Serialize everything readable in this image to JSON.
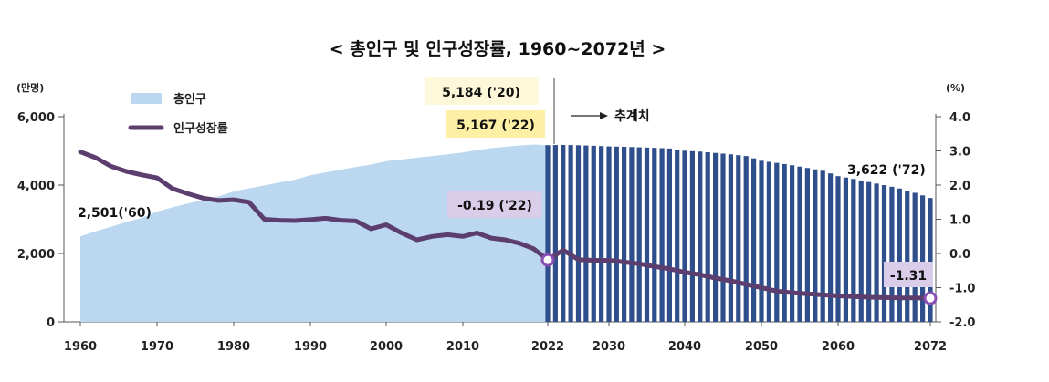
{
  "chart_data": {
    "type": "bar+line",
    "title": "< 총인구 및 인구성장률, 1960~2072년 >",
    "left_axis": {
      "unit": "(만명)",
      "ylim": [
        0,
        6000
      ],
      "ticks": [
        "0",
        "2,000",
        "4,000",
        "6,000"
      ]
    },
    "right_axis": {
      "unit": "(%)",
      "ylim": [
        -2.0,
        4.0
      ],
      "ticks": [
        "4.0",
        "3.0",
        "2.0",
        "1.0",
        "0.0",
        "-1.0",
        "-2.0"
      ]
    },
    "x_ticks": [
      "1960",
      "1970",
      "1980",
      "1990",
      "2000",
      "2010",
      "2022",
      "2030",
      "2040",
      "2050",
      "2060",
      "2072"
    ],
    "legend": {
      "population": "총인구",
      "growth": "인구성장률",
      "position": "top-left"
    },
    "projection_label": "추계치",
    "colors": {
      "observed_area": "#bcd8f0",
      "projection_bars": "#2e4f8c",
      "growth_line": "#5b3e6e",
      "callout_yellow": "#fdf0a4",
      "callout_lightyellow": "#fef8da",
      "callout_purple": "#d9cdea"
    },
    "population": {
      "years": [
        1960,
        1962,
        1964,
        1966,
        1968,
        1970,
        1972,
        1974,
        1976,
        1978,
        1980,
        1982,
        1984,
        1986,
        1988,
        1990,
        1992,
        1994,
        1996,
        1998,
        2000,
        2002,
        2004,
        2006,
        2008,
        2010,
        2012,
        2014,
        2016,
        2018,
        2020,
        2022,
        2024,
        2026,
        2028,
        2030,
        2032,
        2034,
        2036,
        2038,
        2040,
        2042,
        2044,
        2046,
        2048,
        2050,
        2052,
        2054,
        2056,
        2058,
        2060,
        2062,
        2064,
        2066,
        2068,
        2070,
        2072
      ],
      "values": [
        2501,
        2650,
        2780,
        2920,
        3040,
        3224,
        3350,
        3460,
        3560,
        3670,
        3812,
        3905,
        3990,
        4080,
        4160,
        4287,
        4370,
        4450,
        4530,
        4600,
        4701,
        4750,
        4800,
        4850,
        4900,
        4955,
        5020,
        5080,
        5120,
        5160,
        5184,
        5167,
        5175,
        5165,
        5150,
        5131,
        5120,
        5105,
        5090,
        5070,
        5006,
        4980,
        4940,
        4900,
        4850,
        4711,
        4650,
        4580,
        4500,
        4420,
        4262,
        4180,
        4090,
        4000,
        3900,
        3775,
        3622
      ],
      "projection_start": 2022
    },
    "growth_rate": {
      "years": [
        1960,
        1962,
        1964,
        1966,
        1968,
        1970,
        1972,
        1974,
        1976,
        1978,
        1980,
        1982,
        1984,
        1986,
        1988,
        1990,
        1992,
        1994,
        1996,
        1998,
        2000,
        2002,
        2004,
        2006,
        2008,
        2010,
        2012,
        2014,
        2016,
        2018,
        2020,
        2022,
        2024,
        2026,
        2028,
        2030,
        2032,
        2034,
        2036,
        2038,
        2040,
        2042,
        2044,
        2046,
        2048,
        2050,
        2052,
        2054,
        2056,
        2058,
        2060,
        2062,
        2064,
        2066,
        2068,
        2070,
        2072
      ],
      "values": [
        2.97,
        2.8,
        2.55,
        2.4,
        2.3,
        2.21,
        1.9,
        1.75,
        1.62,
        1.55,
        1.57,
        1.5,
        1.0,
        0.97,
        0.96,
        0.99,
        1.03,
        0.97,
        0.95,
        0.72,
        0.84,
        0.6,
        0.4,
        0.5,
        0.55,
        0.5,
        0.6,
        0.45,
        0.4,
        0.3,
        0.14,
        -0.19,
        0.1,
        -0.18,
        -0.2,
        -0.2,
        -0.25,
        -0.3,
        -0.38,
        -0.45,
        -0.55,
        -0.62,
        -0.72,
        -0.8,
        -0.9,
        -1.0,
        -1.1,
        -1.15,
        -1.18,
        -1.21,
        -1.24,
        -1.26,
        -1.28,
        -1.29,
        -1.3,
        -1.3,
        -1.31
      ]
    },
    "annotations": [
      {
        "id": "pop1960",
        "text": "2,501('60)",
        "year": 1960,
        "value": 2501
      },
      {
        "id": "pop2020",
        "text": "5,184 ('20)",
        "year": 2020,
        "value": 5184
      },
      {
        "id": "pop2022",
        "text": "5,167 ('22)",
        "year": 2022,
        "value": 5167
      },
      {
        "id": "pop2072",
        "text": "3,622 ('72)",
        "year": 2072,
        "value": 3622
      },
      {
        "id": "gr2022",
        "text": "-0.19 ('22)",
        "year": 2022,
        "value": -0.19
      },
      {
        "id": "gr2072",
        "text": "-1.31",
        "year": 2072,
        "value": -1.31
      }
    ]
  }
}
